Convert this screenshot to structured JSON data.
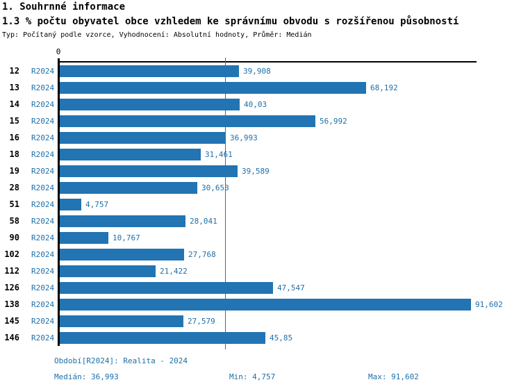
{
  "header": {
    "title1": "1. Souhrnné informace",
    "title2": "1.3 % počtu obyvatel obce vzhledem ke správnímu obvodu s rozšířenou působností",
    "subtitle": "Typ: Počítaný podle vzorce, Vyhodnocení: Absolutní hodnoty, Průměr: Medián"
  },
  "chart_data": {
    "type": "bar",
    "orientation": "horizontal",
    "title": "1.3 % počtu obyvatel obce vzhledem ke správnímu obvodu s rozšířenou působností",
    "axis_zero_label": "0",
    "xlim": [
      0,
      93
    ],
    "grid": false,
    "period_label": "R2024",
    "categories": [
      "12",
      "13",
      "14",
      "15",
      "16",
      "18",
      "19",
      "28",
      "51",
      "58",
      "90",
      "102",
      "112",
      "126",
      "138",
      "145",
      "146"
    ],
    "values": [
      39.908,
      68.192,
      40.03,
      56.992,
      36.993,
      31.461,
      39.589,
      30.653,
      4.757,
      28.041,
      10.767,
      27.768,
      21.422,
      47.547,
      91.602,
      27.579,
      45.85
    ],
    "value_labels": [
      "39,908",
      "68,192",
      "40,03",
      "56,992",
      "36,993",
      "31,461",
      "39,589",
      "30,653",
      "4,757",
      "28,041",
      "10,767",
      "27,768",
      "21,422",
      "47,547",
      "91,602",
      "27,579",
      "45,85"
    ],
    "median": 36.993,
    "min": 4.757,
    "max": 91.602,
    "bar_color": "#2274b2",
    "text_color": "#1d6fa9",
    "median_line_color": "#2274b2"
  },
  "footer": {
    "period": "Období[R2024]: Realita - 2024",
    "median": "Medián: 36,993",
    "min": "Min: 4,757",
    "max": "Max: 91,602"
  }
}
